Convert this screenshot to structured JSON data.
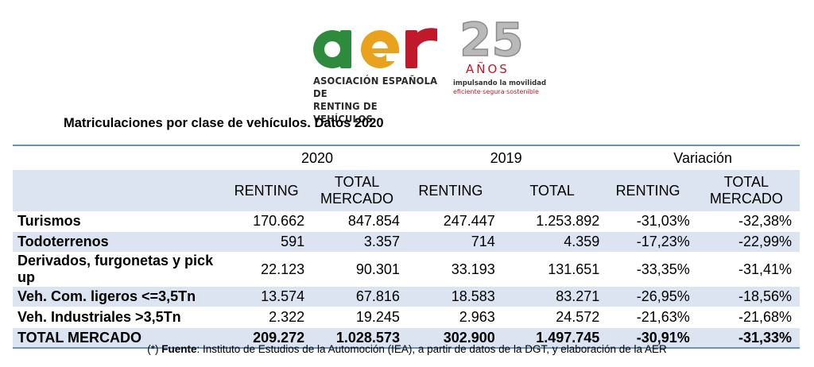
{
  "logo": {
    "wordmark": "aer",
    "subtitle_line1": "ASOCIACIÓN ESPAÑOLA DE",
    "subtitle_line2": "RENTING DE VEHÍCULOS",
    "anniversary_number": "25",
    "anniversary_word": "AÑOS",
    "tagline1": "impulsando la movilidad",
    "tagline2": "eficiente·segura·sostenible",
    "colors": {
      "a": "#2e8b3e",
      "e": "#e8a21b",
      "r": "#c0192b",
      "silver": "#a9a9a9"
    }
  },
  "title": "Matriculaciones por clase de vehículos. Datos 2020",
  "table": {
    "group_headers": [
      "2020",
      "2019",
      "Variación"
    ],
    "column_headers": [
      [
        "RENTING"
      ],
      [
        "TOTAL",
        "MERCADO"
      ],
      [
        "RENTING"
      ],
      [
        "TOTAL"
      ],
      [
        "RENTING"
      ],
      [
        "TOTAL",
        "MERCADO"
      ]
    ],
    "rows": [
      {
        "label": "Turismos",
        "values": [
          "170.662",
          "847.854",
          "247.447",
          "1.253.892",
          "-31,03%",
          "-32,38%"
        ]
      },
      {
        "label": "Todoterrenos",
        "values": [
          "591",
          "3.357",
          "714",
          "4.359",
          "-17,23%",
          "-22,99%"
        ]
      },
      {
        "label": "Derivados, furgonetas y pick up",
        "values": [
          "22.123",
          "90.301",
          "33.193",
          "131.651",
          "-33,35%",
          "-31,41%"
        ]
      },
      {
        "label": "Veh. Com. ligeros <=3,5Tn",
        "values": [
          "13.574",
          "67.816",
          "18.583",
          "83.271",
          "-26,95%",
          "-18,56%"
        ]
      },
      {
        "label": "Veh. Industriales >3,5Tn",
        "values": [
          "2.322",
          "19.245",
          "2.963",
          "24.572",
          "-21,63%",
          "-21,68%"
        ]
      }
    ],
    "total": {
      "label": "TOTAL MERCADO",
      "values": [
        "209.272",
        "1.028.573",
        "302.900",
        "1.497.745",
        "-30,91%",
        "-31,33%"
      ]
    },
    "accent_color": "#6b90c2",
    "shade_color": "#dce4f1"
  },
  "footnote": {
    "prefix": "(*) ",
    "bold": "Fuente",
    "text": ": Instituto de Estudios de la Automoción (IEA), a partir de datos de la DGT, y elaboración de la AER"
  }
}
